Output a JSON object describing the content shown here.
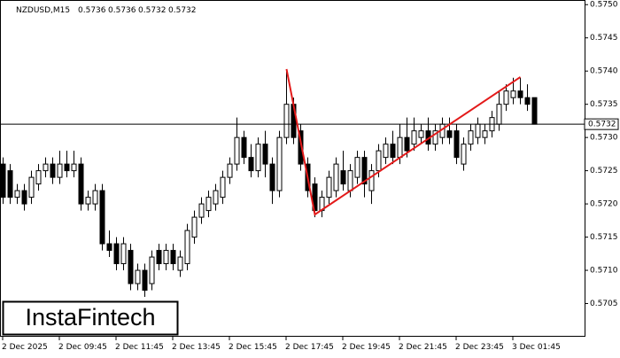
{
  "chart_data": {
    "type": "candlestick",
    "symbol": "NZDUSD,M15",
    "header_values": [
      0.5736,
      0.5736,
      0.5732,
      0.5732
    ],
    "categories": [
      "2 Dec 2025",
      null,
      null,
      null,
      null,
      null,
      null,
      null,
      "2 Dec 09:45",
      null,
      null,
      null,
      null,
      null,
      null,
      null,
      "2 Dec 11:45",
      null,
      null,
      null,
      null,
      null,
      null,
      null,
      "2 Dec 13:45",
      null,
      null,
      null,
      null,
      null,
      null,
      null,
      "2 Dec 15:45",
      null,
      null,
      null,
      null,
      null,
      null,
      null,
      "2 Dec 17:45",
      null,
      null,
      null,
      null,
      null,
      null,
      null,
      "2 Dec 19:45",
      null,
      null,
      null,
      null,
      null,
      null,
      null,
      "2 Dec 21:45",
      null,
      null,
      null,
      null,
      null,
      null,
      null,
      "2 Dec 23:45",
      null,
      null,
      null,
      null,
      null,
      null,
      null,
      "3 Dec 01:45",
      null,
      null,
      null
    ],
    "open": [
      0.5726,
      0.5725,
      0.5721,
      0.5722,
      0.5721,
      0.5723,
      0.5725,
      0.5726,
      0.5724,
      0.5726,
      0.5725,
      0.5726,
      0.572,
      0.572,
      0.5722,
      0.5714,
      0.5714,
      0.5711,
      0.5713,
      0.5708,
      0.571,
      0.5708,
      0.5713,
      0.5711,
      0.5713,
      0.571,
      0.5711,
      0.5715,
      0.5718,
      0.5719,
      0.572,
      0.5721,
      0.5724,
      0.5726,
      0.573,
      0.5727,
      0.5725,
      0.5729,
      0.5726,
      0.5722,
      0.573,
      0.5735,
      0.5731,
      0.5726,
      0.5723,
      0.5719,
      0.5721,
      0.5722,
      0.5725,
      0.5722,
      0.5724,
      0.5727,
      0.5722,
      0.5725,
      0.5727,
      0.5729,
      0.5727,
      0.573,
      0.5729,
      0.573,
      0.5731,
      0.5729,
      0.573,
      0.5731,
      0.5731,
      0.5726,
      0.5729,
      0.573,
      0.573,
      0.5731,
      0.5732,
      0.5735,
      0.5736,
      0.5737,
      0.5736,
      0.5736
    ],
    "high": [
      0.5727,
      0.5726,
      0.5723,
      0.5723,
      0.5725,
      0.5726,
      0.5727,
      0.5727,
      0.5728,
      0.5728,
      0.5728,
      0.5727,
      0.5722,
      0.5723,
      0.5723,
      0.5716,
      0.5715,
      0.5715,
      0.5714,
      0.5711,
      0.5711,
      0.5713,
      0.5714,
      0.5714,
      0.5714,
      0.5713,
      0.5717,
      0.5719,
      0.5721,
      0.5722,
      0.5723,
      0.5725,
      0.5727,
      0.5733,
      0.5731,
      0.5729,
      0.573,
      0.5731,
      0.5727,
      0.5731,
      0.574,
      0.5736,
      0.5732,
      0.5727,
      0.5724,
      0.5722,
      0.5725,
      0.5727,
      0.5728,
      0.5726,
      0.5728,
      0.5728,
      0.5726,
      0.5729,
      0.573,
      0.5731,
      0.5732,
      0.5733,
      0.5733,
      0.5732,
      0.5733,
      0.5732,
      0.5733,
      0.5733,
      0.5732,
      0.573,
      0.5732,
      0.5733,
      0.5732,
      0.5734,
      0.5737,
      0.5738,
      0.5739,
      0.5739,
      0.5738,
      0.5736
    ],
    "low": [
      0.572,
      0.572,
      0.572,
      0.5719,
      0.572,
      0.5722,
      0.5724,
      0.5723,
      0.5723,
      0.5724,
      0.5724,
      0.5719,
      0.5719,
      0.5719,
      0.5713,
      0.5712,
      0.571,
      0.571,
      0.5707,
      0.5707,
      0.5706,
      0.5707,
      0.571,
      0.571,
      0.571,
      0.5709,
      0.571,
      0.5714,
      0.5717,
      0.5718,
      0.5719,
      0.572,
      0.5723,
      0.5725,
      0.5726,
      0.5724,
      0.5724,
      0.5724,
      0.572,
      0.5721,
      0.5729,
      0.5729,
      0.5725,
      0.5721,
      0.5718,
      0.5718,
      0.572,
      0.5721,
      0.5722,
      0.5721,
      0.5723,
      0.5721,
      0.572,
      0.5724,
      0.5726,
      0.5726,
      0.5726,
      0.5727,
      0.5728,
      0.5729,
      0.5728,
      0.5728,
      0.5729,
      0.5729,
      0.5726,
      0.5725,
      0.5728,
      0.5729,
      0.5729,
      0.573,
      0.5731,
      0.5734,
      0.5735,
      0.5735,
      0.5734,
      0.5732
    ],
    "close": [
      0.5721,
      0.5721,
      0.5722,
      0.572,
      0.5724,
      0.5725,
      0.5726,
      0.5724,
      0.5726,
      0.5725,
      0.5726,
      0.572,
      0.5721,
      0.5722,
      0.5714,
      0.5713,
      0.5711,
      0.5714,
      0.5708,
      0.571,
      0.5707,
      0.5712,
      0.5711,
      0.5713,
      0.5711,
      0.5712,
      0.5716,
      0.5718,
      0.572,
      0.5721,
      0.5722,
      0.5724,
      0.5726,
      0.573,
      0.5727,
      0.5725,
      0.5729,
      0.5726,
      0.5722,
      0.573,
      0.5735,
      0.573,
      0.5726,
      0.5722,
      0.5719,
      0.5721,
      0.5724,
      0.5726,
      0.5723,
      0.5725,
      0.5727,
      0.5723,
      0.5725,
      0.5728,
      0.5729,
      0.5727,
      0.573,
      0.5728,
      0.5731,
      0.5731,
      0.5729,
      0.5731,
      0.5732,
      0.573,
      0.5727,
      0.5729,
      0.5731,
      0.5732,
      0.5731,
      0.5733,
      0.5735,
      0.5737,
      0.5737,
      0.5736,
      0.5735,
      0.5732
    ],
    "up_color": "#ffffff",
    "down_color": "#000000",
    "ylim": [
      0.57,
      0.57507
    ],
    "yticks": [
      0.5705,
      {
        "value": 0.571,
        "label": "0.5710"
      },
      0.5715,
      {
        "value": 0.572,
        "label": "0.5720"
      },
      0.5725,
      {
        "value": 0.573,
        "label": "0.5730"
      },
      0.5735,
      {
        "value": 0.574,
        "label": "0.5740"
      },
      0.5745,
      {
        "value": 0.575,
        "label": "0.5750"
      }
    ],
    "current_price": 0.5732,
    "pattern": {
      "color": "#e31a1a",
      "at": [
        40,
        44,
        73
      ],
      "values": [
        0.57403,
        0.57184,
        0.57391
      ]
    },
    "logo": "InstaFintech"
  }
}
